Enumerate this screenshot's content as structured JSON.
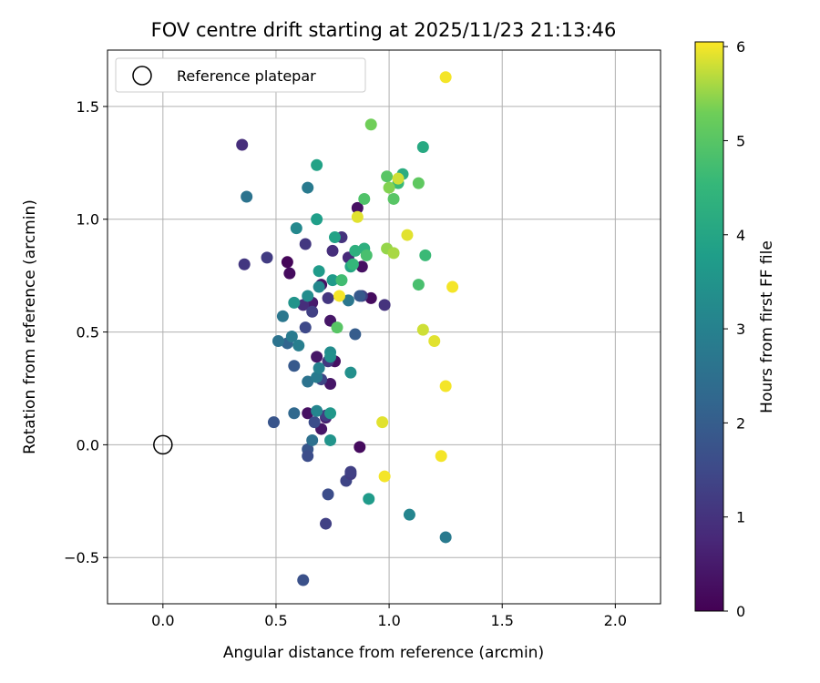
{
  "chart_data": {
    "type": "scatter",
    "title": "FOV centre drift starting at 2025/11/23 21:13:46",
    "xlabel": "Angular distance from reference (arcmin)",
    "ylabel": "Rotation from reference (arcmin)",
    "xlim": [
      -0.245,
      2.2
    ],
    "ylim": [
      -0.705,
      1.75
    ],
    "xticks": [
      0.0,
      0.5,
      1.0,
      1.5,
      2.0
    ],
    "xtick_labels": [
      "0.0",
      "0.5",
      "1.0",
      "1.5",
      "2.0"
    ],
    "yticks": [
      -0.5,
      0.0,
      0.5,
      1.0,
      1.5
    ],
    "ytick_labels": [
      "−0.5",
      "0.0",
      "0.5",
      "1.0",
      "1.5"
    ],
    "grid": true,
    "legend": {
      "position": "top-left",
      "entries": [
        {
          "label": "Reference platepar",
          "marker": "open-circle"
        }
      ]
    },
    "reference_point": {
      "x": 0.0,
      "y": 0.0,
      "label": "Reference platepar"
    },
    "colorbar": {
      "label": "Hours from first FF file",
      "range": [
        0,
        6.05
      ],
      "ticks": [
        0,
        1,
        2,
        3,
        4,
        5,
        6
      ],
      "tick_labels": [
        "0",
        "1",
        "2",
        "3",
        "4",
        "5",
        "6"
      ],
      "colormap": "viridis"
    },
    "points": [
      {
        "x": 0.86,
        "y": 1.05,
        "h": 0.3
      },
      {
        "x": 0.55,
        "y": 0.81,
        "h": 0.1
      },
      {
        "x": 0.56,
        "y": 0.76,
        "h": 0.2
      },
      {
        "x": 0.7,
        "y": 0.71,
        "h": 0.3
      },
      {
        "x": 0.74,
        "y": 0.55,
        "h": 0.4
      },
      {
        "x": 0.76,
        "y": 0.37,
        "h": 0.3
      },
      {
        "x": 0.74,
        "y": 0.27,
        "h": 0.4
      },
      {
        "x": 0.64,
        "y": 0.14,
        "h": 0.3
      },
      {
        "x": 0.7,
        "y": 0.07,
        "h": 0.4
      },
      {
        "x": 0.87,
        "y": -0.01,
        "h": 0.2
      },
      {
        "x": 0.92,
        "y": 0.65,
        "h": 0.2
      },
      {
        "x": 0.88,
        "y": 0.79,
        "h": 0.3
      },
      {
        "x": 0.68,
        "y": 0.39,
        "h": 0.4
      },
      {
        "x": 0.72,
        "y": 0.12,
        "h": 0.6
      },
      {
        "x": 0.66,
        "y": 0.63,
        "h": 0.5
      },
      {
        "x": 0.35,
        "y": 1.33,
        "h": 0.9
      },
      {
        "x": 0.36,
        "y": 0.8,
        "h": 1.1
      },
      {
        "x": 0.46,
        "y": 0.83,
        "h": 1.2
      },
      {
        "x": 0.63,
        "y": 0.89,
        "h": 1.1
      },
      {
        "x": 0.79,
        "y": 0.92,
        "h": 1.0
      },
      {
        "x": 0.75,
        "y": 0.86,
        "h": 0.9
      },
      {
        "x": 0.82,
        "y": 0.83,
        "h": 0.8
      },
      {
        "x": 0.62,
        "y": 0.62,
        "h": 0.9
      },
      {
        "x": 0.66,
        "y": 0.59,
        "h": 1.3
      },
      {
        "x": 0.73,
        "y": 0.65,
        "h": 1.1
      },
      {
        "x": 0.88,
        "y": 0.66,
        "h": 1.3
      },
      {
        "x": 0.98,
        "y": 0.62,
        "h": 1.0
      },
      {
        "x": 0.63,
        "y": 0.52,
        "h": 1.5
      },
      {
        "x": 0.73,
        "y": 0.37,
        "h": 1.1
      },
      {
        "x": 0.7,
        "y": 0.29,
        "h": 1.4
      },
      {
        "x": 0.72,
        "y": 0.13,
        "h": 1.2
      },
      {
        "x": 0.67,
        "y": 0.1,
        "h": 1.6
      },
      {
        "x": 0.64,
        "y": -0.02,
        "h": 1.8
      },
      {
        "x": 0.64,
        "y": -0.05,
        "h": 1.6
      },
      {
        "x": 0.81,
        "y": -0.16,
        "h": 1.4
      },
      {
        "x": 0.83,
        "y": -0.13,
        "h": 1.2
      },
      {
        "x": 0.83,
        "y": -0.12,
        "h": 1.3
      },
      {
        "x": 0.73,
        "y": -0.22,
        "h": 1.6
      },
      {
        "x": 0.72,
        "y": -0.35,
        "h": 1.3
      },
      {
        "x": 0.62,
        "y": -0.6,
        "h": 1.7
      },
      {
        "x": 0.49,
        "y": 0.1,
        "h": 1.8
      },
      {
        "x": 0.58,
        "y": 0.35,
        "h": 1.9
      },
      {
        "x": 0.55,
        "y": 0.45,
        "h": 2.2
      },
      {
        "x": 0.85,
        "y": 0.49,
        "h": 2.0
      },
      {
        "x": 0.58,
        "y": 0.14,
        "h": 2.3
      },
      {
        "x": 0.87,
        "y": 0.66,
        "h": 1.9
      },
      {
        "x": 0.64,
        "y": 0.28,
        "h": 2.6
      },
      {
        "x": 0.66,
        "y": 0.02,
        "h": 2.5
      },
      {
        "x": 0.37,
        "y": 1.1,
        "h": 2.6
      },
      {
        "x": 0.64,
        "y": 1.14,
        "h": 2.8
      },
      {
        "x": 0.82,
        "y": 0.64,
        "h": 2.7
      },
      {
        "x": 0.51,
        "y": 0.46,
        "h": 2.6
      },
      {
        "x": 0.53,
        "y": 0.57,
        "h": 2.7
      },
      {
        "x": 0.57,
        "y": 0.48,
        "h": 2.8
      },
      {
        "x": 0.6,
        "y": 0.44,
        "h": 2.9
      },
      {
        "x": 0.68,
        "y": 0.3,
        "h": 2.8
      },
      {
        "x": 0.69,
        "y": 0.34,
        "h": 3.0
      },
      {
        "x": 0.59,
        "y": 0.96,
        "h": 3.2
      },
      {
        "x": 0.64,
        "y": 0.66,
        "h": 3.3
      },
      {
        "x": 0.69,
        "y": 0.7,
        "h": 3.2
      },
      {
        "x": 0.68,
        "y": 0.15,
        "h": 3.1
      },
      {
        "x": 0.74,
        "y": 0.41,
        "h": 3.3
      },
      {
        "x": 0.74,
        "y": 0.39,
        "h": 3.4
      },
      {
        "x": 0.83,
        "y": 0.32,
        "h": 3.4
      },
      {
        "x": 0.74,
        "y": 0.02,
        "h": 3.5
      },
      {
        "x": 0.74,
        "y": 0.14,
        "h": 3.6
      },
      {
        "x": 0.58,
        "y": 0.63,
        "h": 3.5
      },
      {
        "x": 1.09,
        "y": -0.31,
        "h": 3.1
      },
      {
        "x": 1.25,
        "y": -0.41,
        "h": 2.8
      },
      {
        "x": 0.69,
        "y": 0.77,
        "h": 3.7
      },
      {
        "x": 0.75,
        "y": 0.73,
        "h": 3.7
      },
      {
        "x": 0.91,
        "y": -0.24,
        "h": 3.7
      },
      {
        "x": 0.68,
        "y": 1.0,
        "h": 3.8
      },
      {
        "x": 0.68,
        "y": 1.24,
        "h": 3.9
      },
      {
        "x": 0.76,
        "y": 0.92,
        "h": 3.9
      },
      {
        "x": 0.83,
        "y": 0.79,
        "h": 4.0
      },
      {
        "x": 1.15,
        "y": 1.32,
        "h": 4.1
      },
      {
        "x": 1.06,
        "y": 1.2,
        "h": 4.2
      },
      {
        "x": 0.85,
        "y": 0.86,
        "h": 4.3
      },
      {
        "x": 0.89,
        "y": 0.87,
        "h": 4.3
      },
      {
        "x": 0.84,
        "y": 0.8,
        "h": 4.5
      },
      {
        "x": 1.16,
        "y": 0.84,
        "h": 4.6
      },
      {
        "x": 1.04,
        "y": 1.16,
        "h": 4.6
      },
      {
        "x": 0.79,
        "y": 0.73,
        "h": 4.7
      },
      {
        "x": 0.9,
        "y": 0.84,
        "h": 4.8
      },
      {
        "x": 1.13,
        "y": 0.71,
        "h": 4.8
      },
      {
        "x": 0.89,
        "y": 1.09,
        "h": 4.9
      },
      {
        "x": 1.02,
        "y": 1.09,
        "h": 5.0
      },
      {
        "x": 0.77,
        "y": 0.52,
        "h": 5.0
      },
      {
        "x": 0.99,
        "y": 1.19,
        "h": 5.0
      },
      {
        "x": 1.13,
        "y": 1.16,
        "h": 5.1
      },
      {
        "x": 0.92,
        "y": 1.42,
        "h": 5.3
      },
      {
        "x": 1.0,
        "y": 1.14,
        "h": 5.4
      },
      {
        "x": 0.99,
        "y": 0.87,
        "h": 5.5
      },
      {
        "x": 1.02,
        "y": 0.85,
        "h": 5.6
      },
      {
        "x": 1.04,
        "y": 1.18,
        "h": 5.8
      },
      {
        "x": 0.86,
        "y": 1.01,
        "h": 5.9
      },
      {
        "x": 1.08,
        "y": 0.93,
        "h": 5.9
      },
      {
        "x": 0.78,
        "y": 0.66,
        "h": 6.0
      },
      {
        "x": 1.15,
        "y": 0.51,
        "h": 5.8
      },
      {
        "x": 1.2,
        "y": 0.46,
        "h": 5.9
      },
      {
        "x": 1.28,
        "y": 0.7,
        "h": 6.0
      },
      {
        "x": 1.25,
        "y": 0.26,
        "h": 6.0
      },
      {
        "x": 0.97,
        "y": 0.1,
        "h": 5.9
      },
      {
        "x": 0.98,
        "y": -0.14,
        "h": 6.0
      },
      {
        "x": 1.23,
        "y": -0.05,
        "h": 6.0
      },
      {
        "x": 1.25,
        "y": 1.63,
        "h": 6.0
      }
    ]
  }
}
